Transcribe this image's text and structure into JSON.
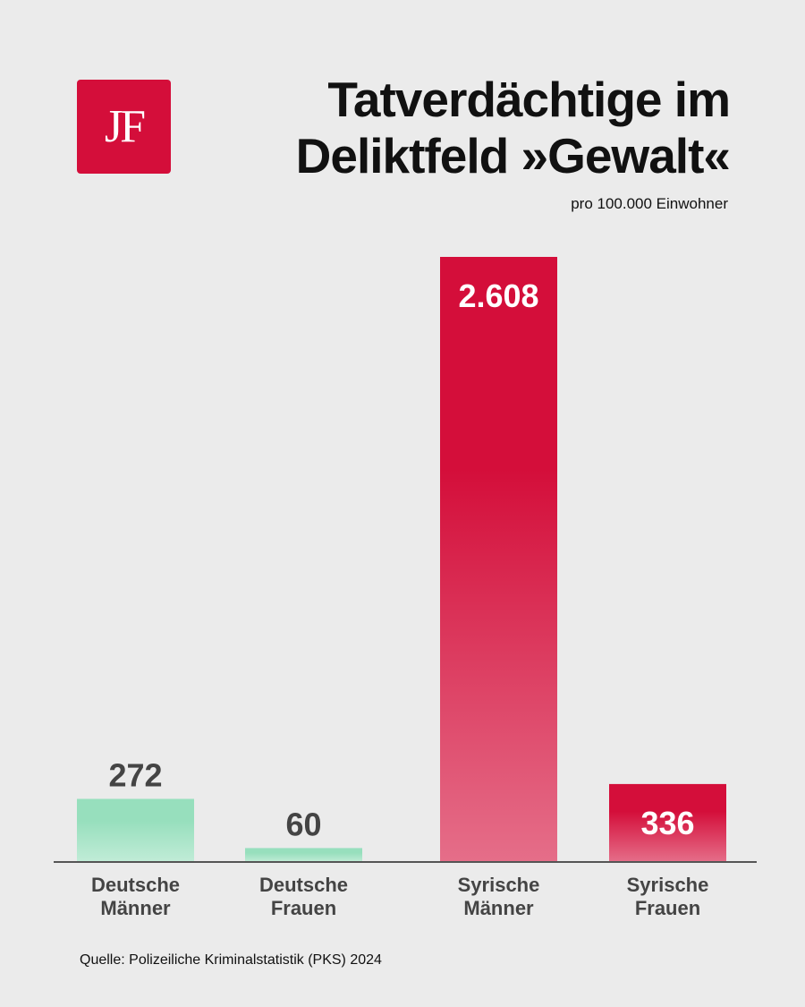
{
  "brand": {
    "logo_text": "JF",
    "logo_color": "#d40e3a"
  },
  "header": {
    "title_line1": "Tatverdächtige im",
    "title_line2": "Deliktfeld »Gewalt«",
    "subtitle": "pro 100.000 Einwohner"
  },
  "footer": {
    "source": "Quelle: Polizeiliche Kriminalstatistik (PKS) 2024"
  },
  "chart_data": {
    "type": "bar",
    "title": "Tatverdächtige im Deliktfeld »Gewalt«",
    "subtitle": "pro 100.000 Einwohner",
    "categories": [
      [
        "Deutsche",
        "Männer"
      ],
      [
        "Deutsche",
        "Frauen"
      ],
      [
        "Syrische",
        "Männer"
      ],
      [
        "Syrische",
        "Frauen"
      ]
    ],
    "values": [
      272,
      60,
      2608,
      336
    ],
    "value_labels": [
      "272",
      "60",
      "2.608",
      "336"
    ],
    "colors": [
      "#97dfbd",
      "#97dfbd",
      "#d40e3a",
      "#d40e3a"
    ],
    "label_colors": [
      "#444444",
      "#444444",
      "#ffffff",
      "#ffffff"
    ],
    "label_position": [
      "above",
      "above",
      "inside",
      "inside"
    ],
    "xlabel": "",
    "ylabel": "",
    "ylim": [
      0,
      2608
    ],
    "grid": false,
    "legend": "none"
  }
}
